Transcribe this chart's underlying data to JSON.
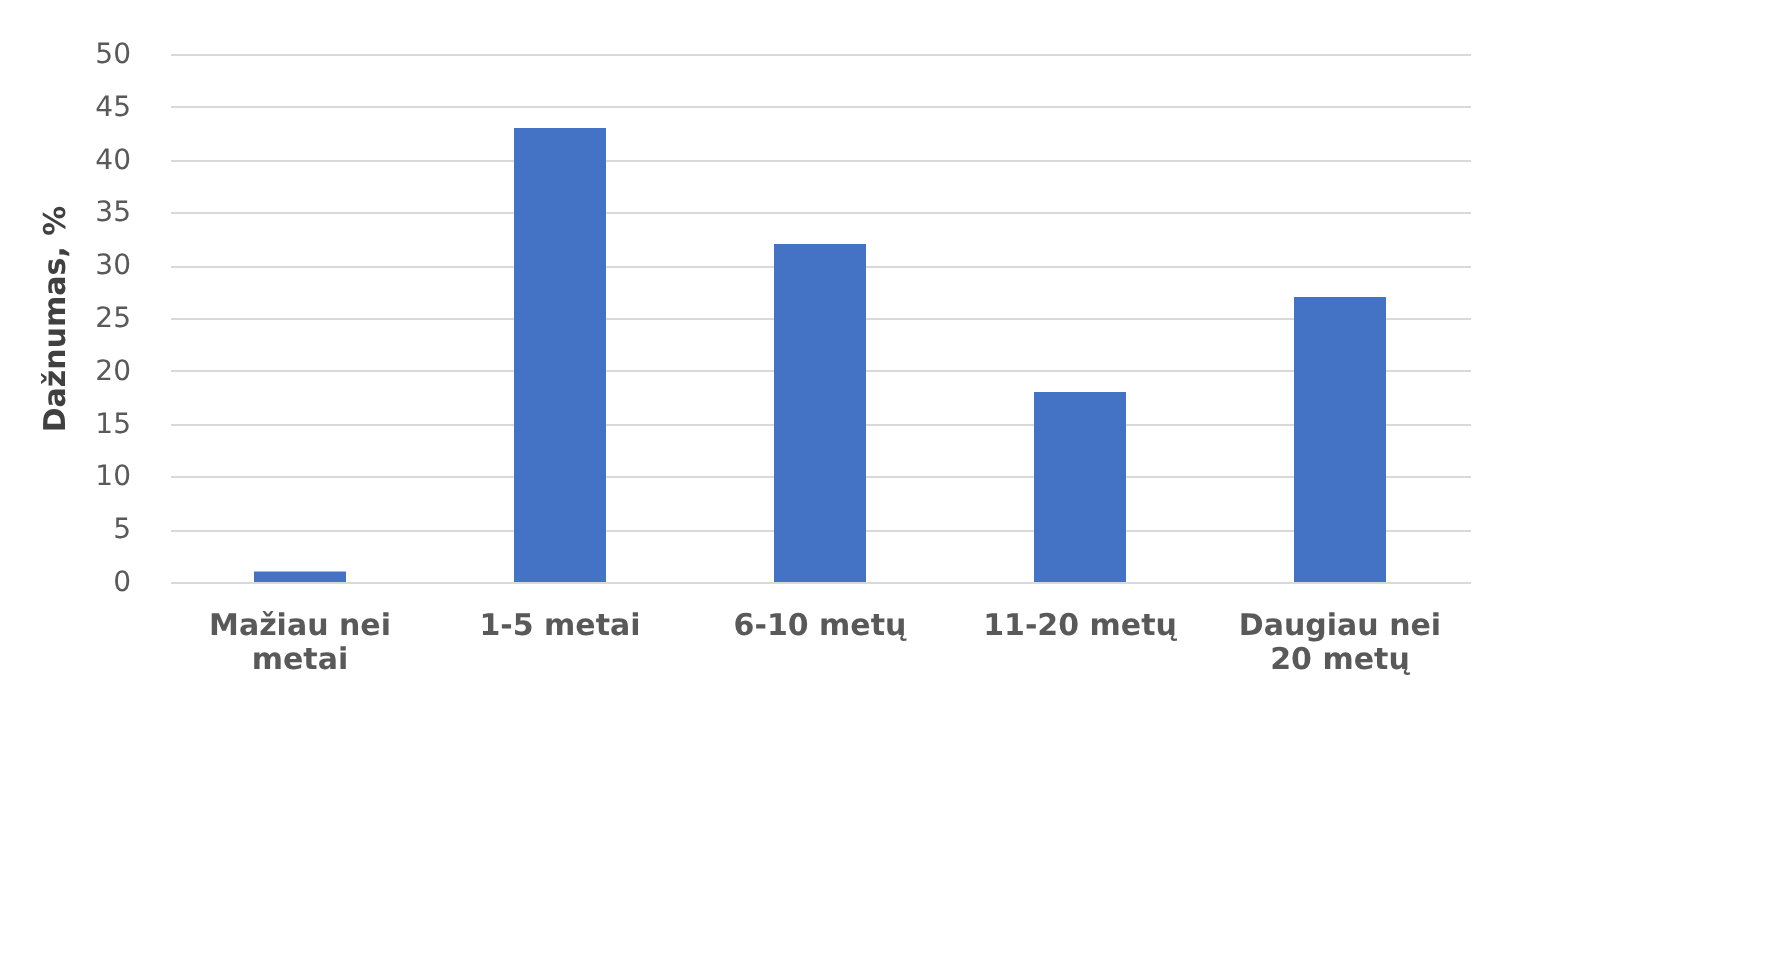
{
  "chart_data": {
    "type": "bar",
    "ylabel": "Dažnumas, %",
    "categories": [
      "Mažiau nei metai",
      "1-5 metai",
      "6-10 metų",
      "11-20 metų",
      "Daugiau nei 20 metų"
    ],
    "values": [
      1,
      43,
      32,
      18,
      27
    ],
    "color": "#4472c4",
    "ylim": [
      0,
      50
    ],
    "yticks": [
      0,
      5,
      10,
      15,
      20,
      25,
      30,
      35,
      40,
      45,
      50
    ],
    "grid": "y"
  }
}
